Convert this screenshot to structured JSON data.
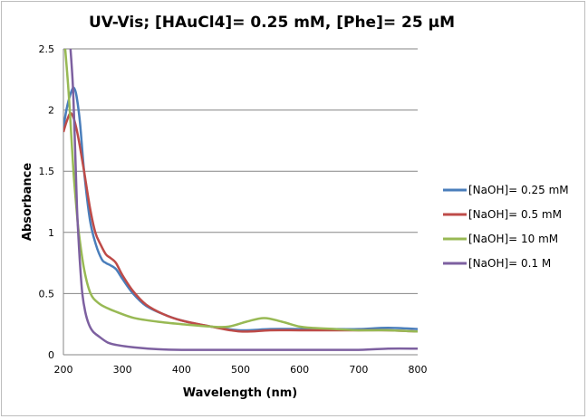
{
  "chart_data": {
    "type": "line",
    "title": "UV-Vis; [HAuCl4]= 0.25 mM, [Phe]= 25 µM",
    "xlabel": "Wavelength (nm)",
    "ylabel": "Absorbance",
    "xlim": [
      200,
      800
    ],
    "ylim": [
      0,
      2.5
    ],
    "xticks": [
      200,
      300,
      400,
      500,
      600,
      700,
      800
    ],
    "yticks": [
      0,
      0.5,
      1,
      1.5,
      2,
      2.5
    ],
    "ytick_labels": [
      "0",
      "0.5",
      "1",
      "1.5",
      "2",
      "2.5"
    ],
    "grid": "horizontal",
    "legend_position": "right",
    "series": [
      {
        "name": "[NaOH]= 0.25 mM",
        "color": "#4a7ebb",
        "x": [
          200,
          205,
          210,
          215,
          218,
          222,
          228,
          235,
          245,
          255,
          265,
          272,
          280,
          289,
          300,
          318,
          340,
          370,
          400,
          450,
          500,
          550,
          600,
          650,
          700,
          750,
          800
        ],
        "y": [
          1.85,
          2.0,
          2.1,
          2.17,
          2.18,
          2.12,
          1.9,
          1.5,
          1.1,
          0.9,
          0.78,
          0.75,
          0.73,
          0.7,
          0.62,
          0.5,
          0.4,
          0.33,
          0.28,
          0.23,
          0.2,
          0.21,
          0.21,
          0.21,
          0.21,
          0.22,
          0.21
        ]
      },
      {
        "name": "[NaOH]= 0.5 mM",
        "color": "#be4b48",
        "x": [
          200,
          205,
          211,
          216,
          222,
          228,
          235,
          245,
          254,
          263,
          272,
          280,
          289,
          300,
          318,
          340,
          370,
          400,
          450,
          500,
          550,
          600,
          650,
          700,
          750,
          800
        ],
        "y": [
          1.82,
          1.9,
          1.97,
          1.95,
          1.85,
          1.7,
          1.5,
          1.2,
          1.0,
          0.9,
          0.82,
          0.79,
          0.75,
          0.65,
          0.52,
          0.41,
          0.33,
          0.28,
          0.23,
          0.19,
          0.2,
          0.2,
          0.2,
          0.2,
          0.2,
          0.19
        ]
      },
      {
        "name": "[NaOH]= 10 mM",
        "color": "#98b954",
        "x": [
          203,
          208,
          212,
          217,
          222,
          226,
          235,
          246,
          260,
          275,
          290,
          320,
          360,
          400,
          450,
          480,
          510,
          540,
          570,
          600,
          620,
          660,
          700,
          750,
          800
        ],
        "y": [
          2.5,
          2.2,
          1.9,
          1.5,
          1.2,
          1.0,
          0.7,
          0.5,
          0.42,
          0.38,
          0.35,
          0.3,
          0.27,
          0.25,
          0.23,
          0.23,
          0.27,
          0.3,
          0.27,
          0.23,
          0.22,
          0.21,
          0.2,
          0.2,
          0.19
        ]
      },
      {
        "name": "[NaOH]= 0.1 M",
        "color": "#7d60a0",
        "x": [
          212,
          216,
          219,
          221,
          223,
          225,
          228,
          232,
          237,
          243,
          250,
          260,
          275,
          290,
          320,
          360,
          400,
          500,
          600,
          700,
          750,
          800
        ],
        "y": [
          2.5,
          2.2,
          1.8,
          1.5,
          1.2,
          1.0,
          0.75,
          0.5,
          0.35,
          0.25,
          0.19,
          0.15,
          0.1,
          0.08,
          0.06,
          0.045,
          0.04,
          0.04,
          0.04,
          0.04,
          0.05,
          0.05
        ]
      }
    ]
  }
}
